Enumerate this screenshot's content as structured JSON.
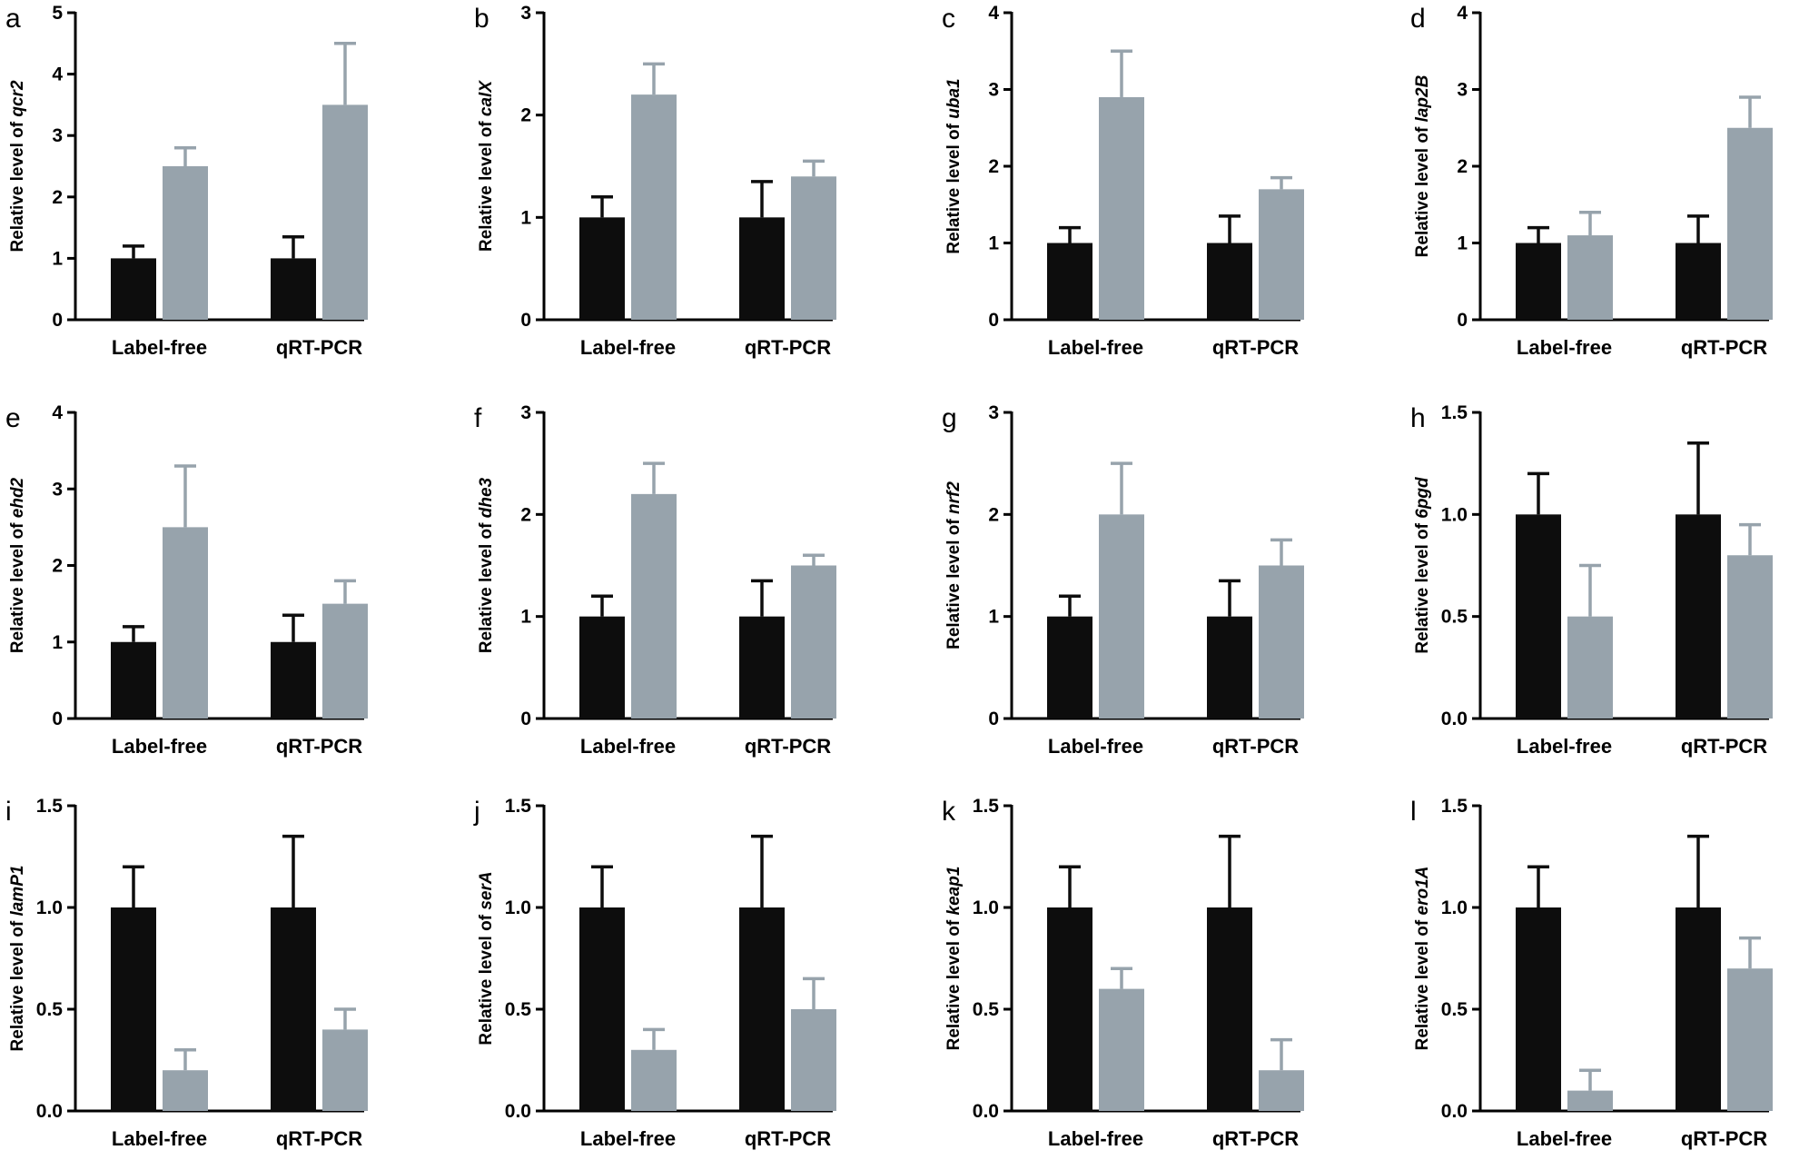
{
  "colors": {
    "label_free_bar": "#0d0d0d",
    "qrt_pcr_bar": "#97a3ac",
    "axis": "#000000"
  },
  "chart_data": [
    {
      "panel": "a",
      "type": "bar",
      "categories": [
        "Label-free",
        "qRT-PCR"
      ],
      "ylabel_prefix": "Relative level of ",
      "gene": "qcr2",
      "ylim": [
        0,
        5
      ],
      "yticks": [
        "0",
        "1",
        "2",
        "3",
        "4",
        "5"
      ],
      "series": [
        {
          "values": [
            1.0,
            1.0
          ],
          "errors": [
            0.2,
            0.35
          ]
        },
        {
          "values": [
            2.5,
            3.5
          ],
          "errors": [
            0.3,
            1.0
          ]
        }
      ]
    },
    {
      "panel": "b",
      "type": "bar",
      "categories": [
        "Label-free",
        "qRT-PCR"
      ],
      "ylabel_prefix": "Relative level of ",
      "gene": "calX",
      "ylim": [
        0,
        3
      ],
      "yticks": [
        "0",
        "1",
        "2",
        "3"
      ],
      "series": [
        {
          "values": [
            1.0,
            1.0
          ],
          "errors": [
            0.2,
            0.35
          ]
        },
        {
          "values": [
            2.2,
            1.4
          ],
          "errors": [
            0.3,
            0.15
          ]
        }
      ]
    },
    {
      "panel": "c",
      "type": "bar",
      "categories": [
        "Label-free",
        "qRT-PCR"
      ],
      "ylabel_prefix": "Relative level of ",
      "gene": "uba1",
      "ylim": [
        0,
        4
      ],
      "yticks": [
        "0",
        "1",
        "2",
        "3",
        "4"
      ],
      "series": [
        {
          "values": [
            1.0,
            1.0
          ],
          "errors": [
            0.2,
            0.35
          ]
        },
        {
          "values": [
            2.9,
            1.7
          ],
          "errors": [
            0.6,
            0.15
          ]
        }
      ]
    },
    {
      "panel": "d",
      "type": "bar",
      "categories": [
        "Label-free",
        "qRT-PCR"
      ],
      "ylabel_prefix": "Relative level of ",
      "gene": "lap2B",
      "ylim": [
        0,
        4
      ],
      "yticks": [
        "0",
        "1",
        "2",
        "3",
        "4"
      ],
      "series": [
        {
          "values": [
            1.0,
            1.0
          ],
          "errors": [
            0.2,
            0.35
          ]
        },
        {
          "values": [
            1.1,
            2.5
          ],
          "errors": [
            0.3,
            0.4
          ]
        }
      ]
    },
    {
      "panel": "e",
      "type": "bar",
      "categories": [
        "Label-free",
        "qRT-PCR"
      ],
      "ylabel_prefix": "Relative level of ",
      "gene": "ehd2",
      "ylim": [
        0,
        4
      ],
      "yticks": [
        "0",
        "1",
        "2",
        "3",
        "4"
      ],
      "series": [
        {
          "values": [
            1.0,
            1.0
          ],
          "errors": [
            0.2,
            0.35
          ]
        },
        {
          "values": [
            2.5,
            1.5
          ],
          "errors": [
            0.8,
            0.3
          ]
        }
      ]
    },
    {
      "panel": "f",
      "type": "bar",
      "categories": [
        "Label-free",
        "qRT-PCR"
      ],
      "ylabel_prefix": "Relative level of ",
      "gene": "dhe3",
      "ylim": [
        0,
        3
      ],
      "yticks": [
        "0",
        "1",
        "2",
        "3"
      ],
      "series": [
        {
          "values": [
            1.0,
            1.0
          ],
          "errors": [
            0.2,
            0.35
          ]
        },
        {
          "values": [
            2.2,
            1.5
          ],
          "errors": [
            0.3,
            0.1
          ]
        }
      ]
    },
    {
      "panel": "g",
      "type": "bar",
      "categories": [
        "Label-free",
        "qRT-PCR"
      ],
      "ylabel_prefix": "Relative level of ",
      "gene": "nrf2",
      "ylim": [
        0,
        3
      ],
      "yticks": [
        "0",
        "1",
        "2",
        "3"
      ],
      "series": [
        {
          "values": [
            1.0,
            1.0
          ],
          "errors": [
            0.2,
            0.35
          ]
        },
        {
          "values": [
            2.0,
            1.5
          ],
          "errors": [
            0.5,
            0.25
          ]
        }
      ]
    },
    {
      "panel": "h",
      "type": "bar",
      "categories": [
        "Label-free",
        "qRT-PCR"
      ],
      "ylabel_prefix": "Relative level of ",
      "gene": "6pgd",
      "ylim": [
        0,
        1.5
      ],
      "yticks": [
        "0.0",
        "0.5",
        "1.0",
        "1.5"
      ],
      "series": [
        {
          "values": [
            1.0,
            1.0
          ],
          "errors": [
            0.2,
            0.35
          ]
        },
        {
          "values": [
            0.5,
            0.8
          ],
          "errors": [
            0.25,
            0.15
          ]
        }
      ]
    },
    {
      "panel": "i",
      "type": "bar",
      "categories": [
        "Label-free",
        "qRT-PCR"
      ],
      "ylabel_prefix": "Relative level of ",
      "gene": "lamP1",
      "ylim": [
        0,
        1.5
      ],
      "yticks": [
        "0.0",
        "0.5",
        "1.0",
        "1.5"
      ],
      "series": [
        {
          "values": [
            1.0,
            1.0
          ],
          "errors": [
            0.2,
            0.35
          ]
        },
        {
          "values": [
            0.2,
            0.4
          ],
          "errors": [
            0.1,
            0.1
          ]
        }
      ]
    },
    {
      "panel": "j",
      "type": "bar",
      "categories": [
        "Label-free",
        "qRT-PCR"
      ],
      "ylabel_prefix": "Relative level of ",
      "gene": "serA",
      "ylim": [
        0,
        1.5
      ],
      "yticks": [
        "0.0",
        "0.5",
        "1.0",
        "1.5"
      ],
      "series": [
        {
          "values": [
            1.0,
            1.0
          ],
          "errors": [
            0.2,
            0.35
          ]
        },
        {
          "values": [
            0.3,
            0.5
          ],
          "errors": [
            0.1,
            0.15
          ]
        }
      ]
    },
    {
      "panel": "k",
      "type": "bar",
      "categories": [
        "Label-free",
        "qRT-PCR"
      ],
      "ylabel_prefix": "Relative level of ",
      "gene": "keap1",
      "ylim": [
        0,
        1.5
      ],
      "yticks": [
        "0.0",
        "0.5",
        "1.0",
        "1.5"
      ],
      "series": [
        {
          "values": [
            1.0,
            1.0
          ],
          "errors": [
            0.2,
            0.35
          ]
        },
        {
          "values": [
            0.6,
            0.2
          ],
          "errors": [
            0.1,
            0.15
          ]
        }
      ]
    },
    {
      "panel": "l",
      "type": "bar",
      "categories": [
        "Label-free",
        "qRT-PCR"
      ],
      "ylabel_prefix": "Relative level of ",
      "gene": "ero1A",
      "ylim": [
        0,
        1.5
      ],
      "yticks": [
        "0.0",
        "0.5",
        "1.0",
        "1.5"
      ],
      "series": [
        {
          "values": [
            1.0,
            1.0
          ],
          "errors": [
            0.2,
            0.35
          ]
        },
        {
          "values": [
            0.1,
            0.7
          ],
          "errors": [
            0.1,
            0.15
          ]
        }
      ]
    }
  ]
}
